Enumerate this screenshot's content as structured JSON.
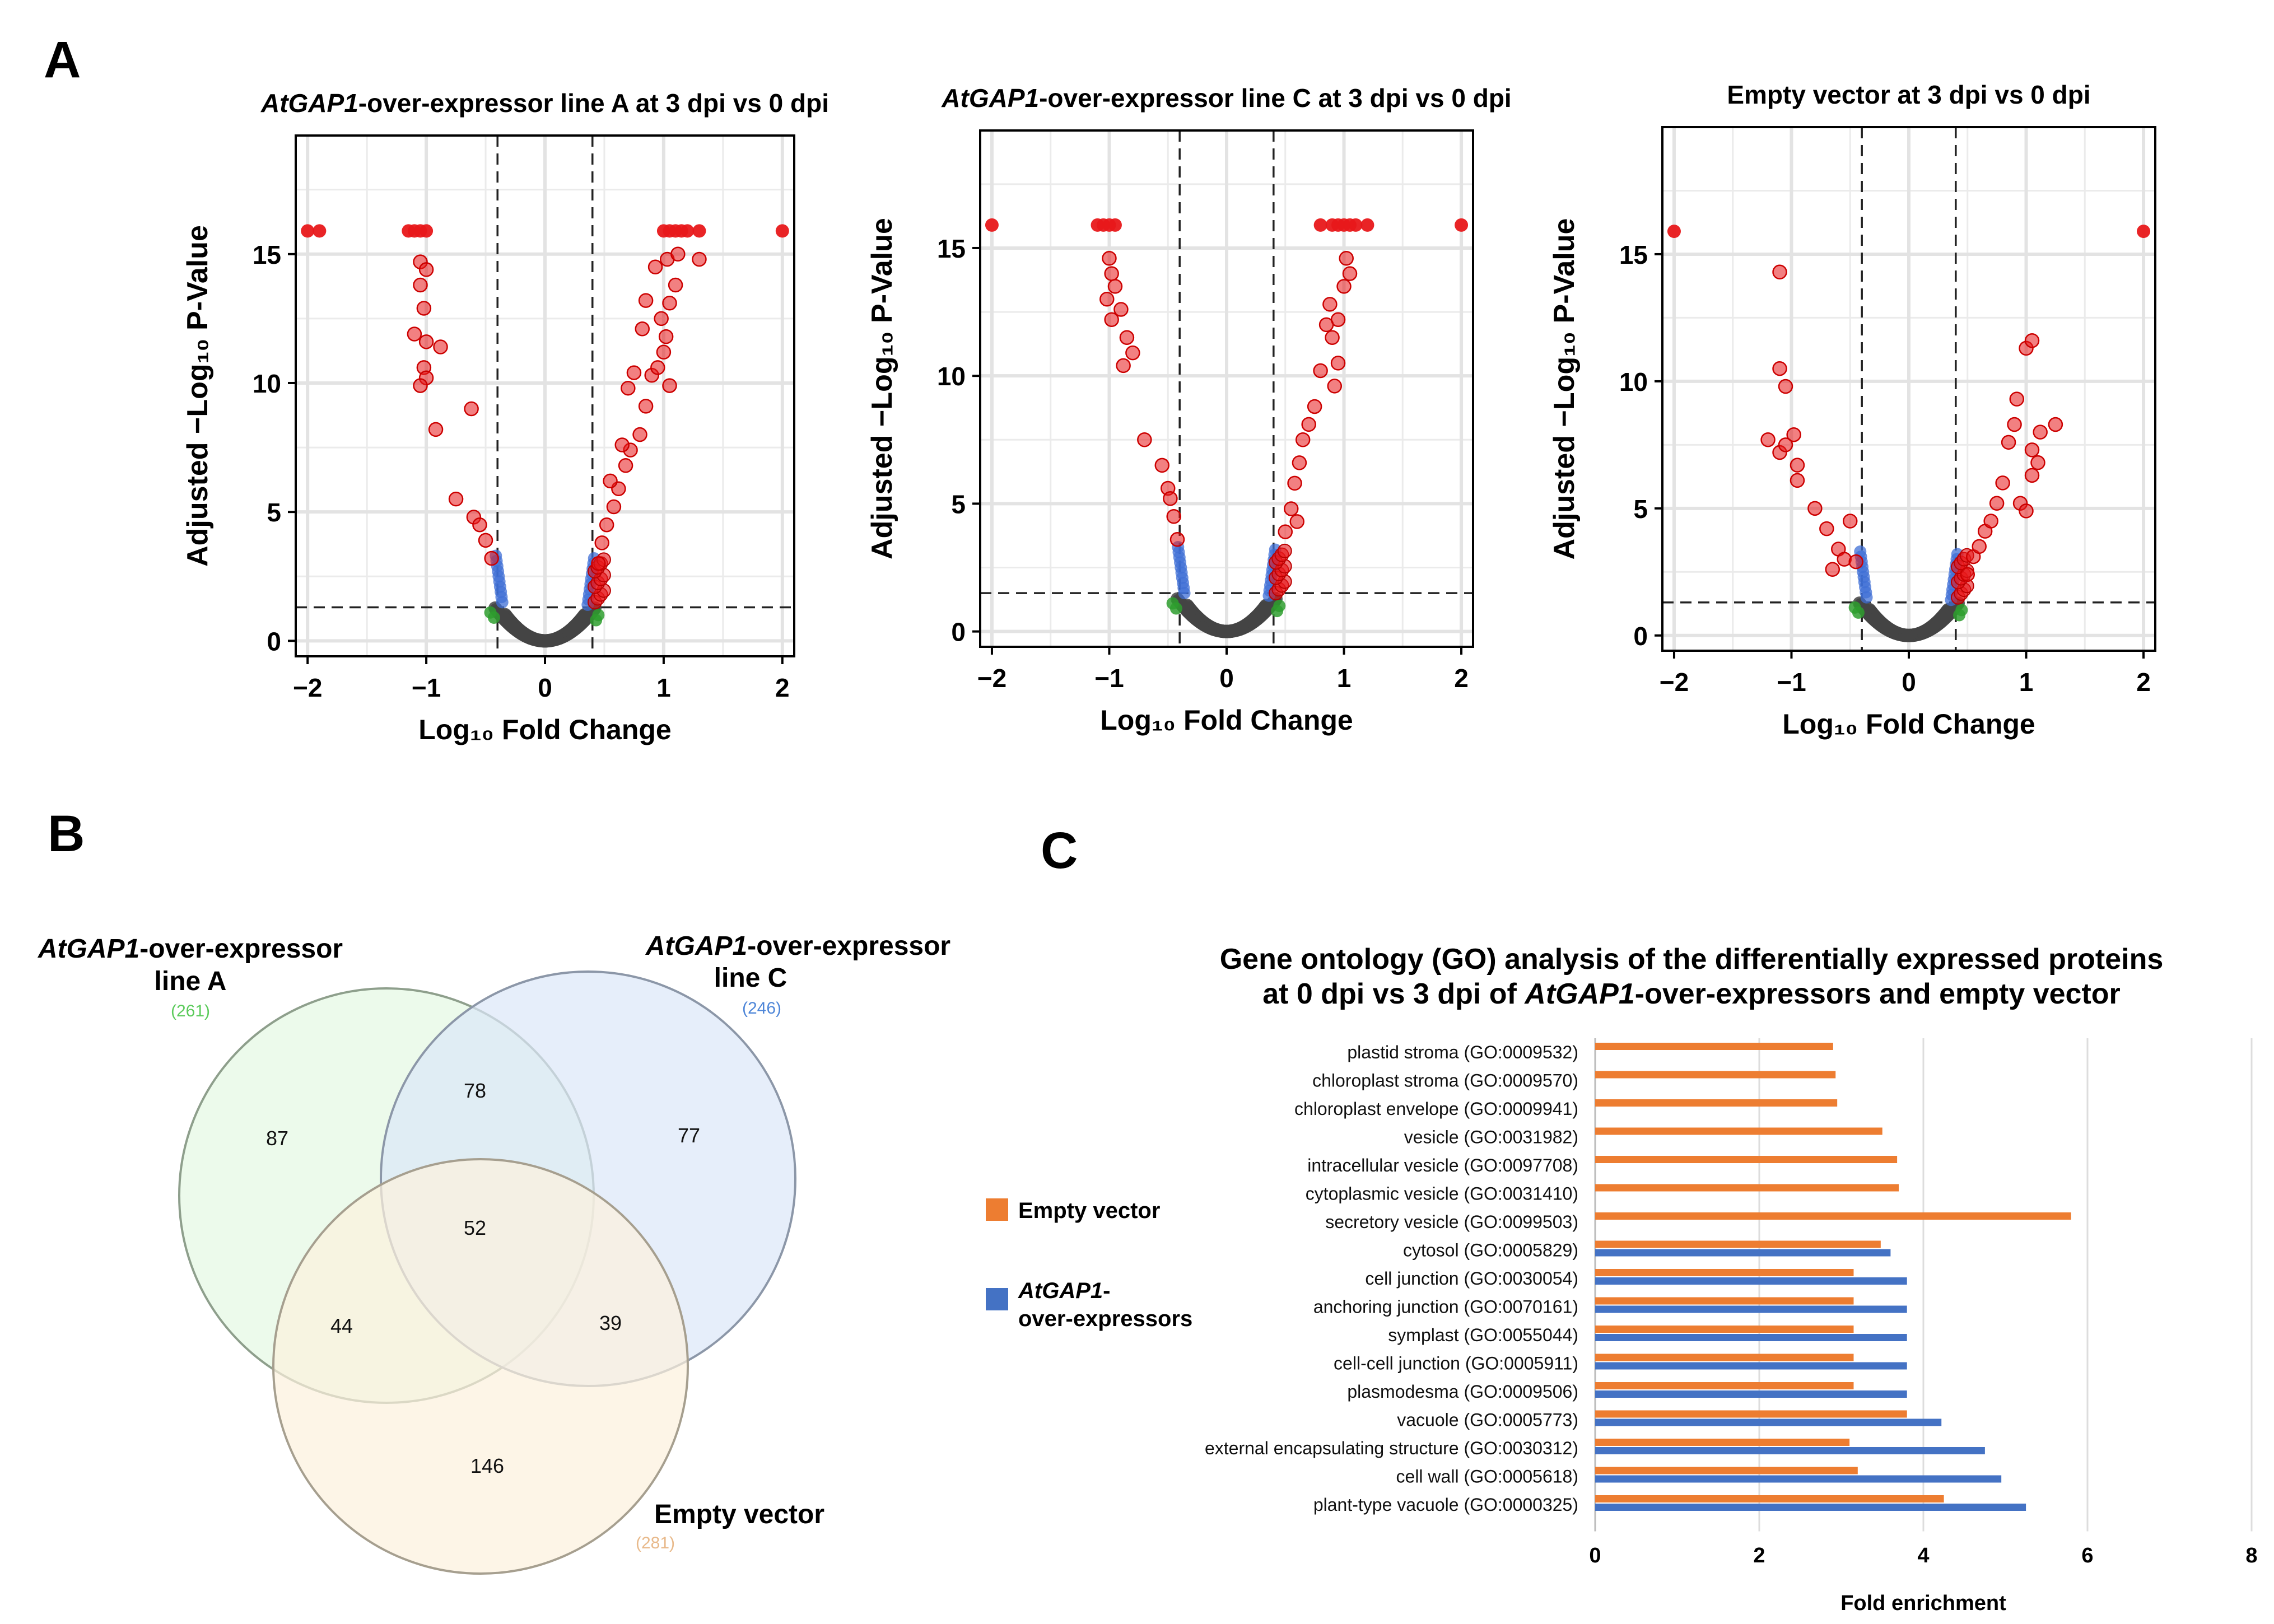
{
  "panels": {
    "a": "A",
    "b": "B",
    "c": "C"
  },
  "colors": {
    "not_significant": "#444444",
    "significant_p": "#3F6FD6",
    "significant_fc": "#2E9E2E",
    "significant_both": "#E8181A",
    "venn_line_a": "#90EE90",
    "venn_line_c": "#A8C4F0",
    "venn_empty": "#F8E6C8",
    "bar_empty_vector": "#ED7D31",
    "bar_overexpressors": "#4472C4"
  },
  "chart_data": [
    {
      "type": "scatter",
      "title_italic": "AtGAP1",
      "title_rest": "-over-expressor line A at 3 dpi vs 0 dpi",
      "xlabel": "Log₁₀ Fold Change",
      "ylabel": "Adjusted −Log₁₀ P-Value",
      "xlim": [
        -2.1,
        2.1
      ],
      "ylim": [
        -0.6,
        19.6
      ],
      "xticks": [
        -2,
        -1,
        0,
        1,
        2
      ],
      "yticks": [
        0,
        5,
        10,
        15
      ],
      "fc_cutoff": 0.4,
      "p_cutoff": 1.3,
      "outliers": [
        [
          -2.0,
          15.9
        ],
        [
          -1.9,
          15.9
        ],
        [
          -1.15,
          15.9
        ],
        [
          -1.1,
          15.9
        ],
        [
          -1.05,
          15.9
        ],
        [
          -1.0,
          15.9
        ],
        [
          1.0,
          15.9
        ],
        [
          1.05,
          15.9
        ],
        [
          1.1,
          15.9
        ],
        [
          1.15,
          15.9
        ],
        [
          1.2,
          15.9
        ],
        [
          1.3,
          15.9
        ],
        [
          2.0,
          15.9
        ]
      ],
      "points": [
        [
          -1.05,
          14.7
        ],
        [
          -1.0,
          14.4
        ],
        [
          -1.05,
          13.8
        ],
        [
          -1.02,
          12.9
        ],
        [
          -1.1,
          11.9
        ],
        [
          -1.0,
          11.6
        ],
        [
          -0.88,
          11.4
        ],
        [
          -1.02,
          10.6
        ],
        [
          -1.0,
          10.2
        ],
        [
          -1.05,
          9.9
        ],
        [
          -0.92,
          8.2
        ],
        [
          -0.62,
          9.0
        ],
        [
          -0.75,
          5.5
        ],
        [
          -0.6,
          4.8
        ],
        [
          -0.55,
          4.5
        ],
        [
          -0.5,
          3.9
        ],
        [
          -0.45,
          3.2
        ],
        [
          0.45,
          3.0
        ],
        [
          0.48,
          3.8
        ],
        [
          0.52,
          4.5
        ],
        [
          0.58,
          5.2
        ],
        [
          0.62,
          5.9
        ],
        [
          0.68,
          6.8
        ],
        [
          0.72,
          7.4
        ],
        [
          0.8,
          8.0
        ],
        [
          0.85,
          9.1
        ],
        [
          0.9,
          10.3
        ],
        [
          0.95,
          10.6
        ],
        [
          1.0,
          11.2
        ],
        [
          1.02,
          11.8
        ],
        [
          0.98,
          12.5
        ],
        [
          1.05,
          13.1
        ],
        [
          1.1,
          13.8
        ],
        [
          0.93,
          14.5
        ],
        [
          1.03,
          14.8
        ],
        [
          1.12,
          15.0
        ],
        [
          1.3,
          14.8
        ],
        [
          0.85,
          13.2
        ],
        [
          0.82,
          12.1
        ],
        [
          0.75,
          10.4
        ],
        [
          0.7,
          9.8
        ],
        [
          0.65,
          7.6
        ],
        [
          0.55,
          6.2
        ],
        [
          1.05,
          9.9
        ]
      ]
    },
    {
      "type": "scatter",
      "title_italic": "AtGAP1",
      "title_rest": "-over-expressor line C at 3 dpi vs 0 dpi",
      "xlabel": "Log₁₀ Fold Change",
      "ylabel": "Adjusted −Log₁₀ P-Value",
      "xlim": [
        -2.1,
        2.1
      ],
      "ylim": [
        -0.6,
        19.6
      ],
      "xticks": [
        -2,
        -1,
        0,
        1,
        2
      ],
      "yticks": [
        0,
        5,
        10,
        15
      ],
      "fc_cutoff": 0.4,
      "p_cutoff": 1.5,
      "outliers": [
        [
          -2.0,
          15.9
        ],
        [
          -1.1,
          15.9
        ],
        [
          -1.05,
          15.9
        ],
        [
          -1.0,
          15.9
        ],
        [
          -0.95,
          15.9
        ],
        [
          0.8,
          15.9
        ],
        [
          0.9,
          15.9
        ],
        [
          0.95,
          15.9
        ],
        [
          1.0,
          15.9
        ],
        [
          1.05,
          15.9
        ],
        [
          1.1,
          15.9
        ],
        [
          1.2,
          15.9
        ],
        [
          2.0,
          15.9
        ]
      ],
      "points": [
        [
          -1.0,
          14.6
        ],
        [
          -0.98,
          14.0
        ],
        [
          -0.95,
          13.5
        ],
        [
          -1.02,
          13.0
        ],
        [
          -0.9,
          12.6
        ],
        [
          -0.98,
          12.2
        ],
        [
          -0.85,
          11.5
        ],
        [
          -0.8,
          10.9
        ],
        [
          -0.88,
          10.4
        ],
        [
          -0.7,
          7.5
        ],
        [
          -0.55,
          6.5
        ],
        [
          -0.5,
          5.6
        ],
        [
          -0.48,
          5.2
        ],
        [
          -0.45,
          4.5
        ],
        [
          -0.42,
          3.6
        ],
        [
          0.5,
          3.9
        ],
        [
          0.55,
          4.8
        ],
        [
          0.58,
          5.8
        ],
        [
          0.62,
          6.6
        ],
        [
          0.65,
          7.5
        ],
        [
          0.7,
          8.1
        ],
        [
          0.75,
          8.8
        ],
        [
          0.8,
          10.2
        ],
        [
          0.9,
          11.5
        ],
        [
          0.95,
          12.2
        ],
        [
          1.0,
          13.5
        ],
        [
          1.02,
          14.6
        ],
        [
          1.05,
          14.0
        ],
        [
          0.88,
          12.8
        ],
        [
          0.85,
          12.0
        ],
        [
          0.95,
          10.5
        ],
        [
          0.92,
          9.6
        ],
        [
          0.6,
          4.3
        ]
      ]
    },
    {
      "type": "scatter",
      "title_italic": "",
      "title_rest": "Empty vector at 3 dpi vs 0 dpi",
      "xlabel": "Log₁₀ Fold Change",
      "ylabel": "Adjusted −Log₁₀ P-Value",
      "xlim": [
        -2.1,
        2.1
      ],
      "ylim": [
        -0.6,
        20.0
      ],
      "xticks": [
        -2,
        -1,
        0,
        1,
        2
      ],
      "yticks": [
        0,
        5,
        10,
        15
      ],
      "fc_cutoff": 0.4,
      "p_cutoff": 1.3,
      "outliers": [
        [
          -2.0,
          15.9
        ],
        [
          2.0,
          15.9
        ]
      ],
      "points": [
        [
          -1.1,
          14.3
        ],
        [
          -1.1,
          10.5
        ],
        [
          -1.05,
          9.8
        ],
        [
          -1.2,
          7.7
        ],
        [
          -1.1,
          7.2
        ],
        [
          -0.98,
          7.9
        ],
        [
          -1.05,
          7.5
        ],
        [
          -0.95,
          6.7
        ],
        [
          -0.95,
          6.1
        ],
        [
          -0.8,
          5.0
        ],
        [
          -0.7,
          4.2
        ],
        [
          -0.6,
          3.4
        ],
        [
          -0.55,
          3.0
        ],
        [
          -0.5,
          4.5
        ],
        [
          -0.45,
          2.9
        ],
        [
          -0.65,
          2.6
        ],
        [
          0.5,
          2.4
        ],
        [
          0.55,
          3.1
        ],
        [
          0.6,
          3.5
        ],
        [
          0.65,
          4.1
        ],
        [
          0.7,
          4.5
        ],
        [
          0.75,
          5.2
        ],
        [
          0.8,
          6.0
        ],
        [
          0.85,
          7.6
        ],
        [
          0.9,
          8.3
        ],
        [
          0.95,
          5.2
        ],
        [
          1.0,
          4.9
        ],
        [
          1.05,
          6.3
        ],
        [
          1.1,
          6.8
        ],
        [
          1.05,
          7.3
        ],
        [
          1.0,
          11.3
        ],
        [
          1.05,
          11.6
        ],
        [
          1.25,
          8.3
        ],
        [
          1.12,
          8.0
        ],
        [
          0.92,
          9.3
        ]
      ]
    },
    {
      "type": "venn",
      "sets": [
        {
          "name_italic": "AtGAP1",
          "name_rest": "-over-expressor",
          "name_line2": "line A",
          "total": "(261)"
        },
        {
          "name_italic": "AtGAP1",
          "name_rest": "-over-expressor",
          "name_line2": "line C",
          "total": "(246)"
        },
        {
          "name": "Empty vector",
          "total": "(281)"
        }
      ],
      "regions": {
        "a_only": "87",
        "c_only": "77",
        "empty_only": "146",
        "a_c": "78",
        "a_empty": "44",
        "c_empty": "39",
        "all": "52"
      }
    },
    {
      "type": "bar",
      "orientation": "horizontal",
      "title_line1": "Gene ontology (GO) analysis of the differentially expressed proteins",
      "title_line2_pre": "at 0 dpi vs 3 dpi of ",
      "title_line2_italic": "AtGAP1",
      "title_line2_post": "-over-expressors and empty vector",
      "xlabel": "Fold enrichment",
      "xlim": [
        0,
        8
      ],
      "xticks": [
        0,
        2,
        4,
        6,
        8
      ],
      "categories": [
        "plastid stroma (GO:0009532)",
        "chloroplast stroma (GO:0009570)",
        "chloroplast envelope (GO:0009941)",
        "vesicle (GO:0031982)",
        "intracellular vesicle (GO:0097708)",
        "cytoplasmic vesicle (GO:0031410)",
        "secretory vesicle (GO:0099503)",
        "cytosol (GO:0005829)",
        "cell junction (GO:0030054)",
        "anchoring junction (GO:0070161)",
        "symplast (GO:0055044)",
        "cell-cell junction (GO:0005911)",
        "plasmodesma (GO:0009506)",
        "vacuole (GO:0005773)",
        "external encapsulating structure (GO:0030312)",
        "cell wall (GO:0005618)",
        "plant-type vacuole (GO:0000325)"
      ],
      "series": [
        {
          "name": "Empty vector",
          "values": [
            2.9,
            2.93,
            2.95,
            3.5,
            3.68,
            3.7,
            5.8,
            3.48,
            3.15,
            3.15,
            3.15,
            3.15,
            3.15,
            3.8,
            3.1,
            3.2,
            4.25
          ]
        },
        {
          "name_italic": "AtGAP1",
          "name_rest": "-",
          "name_line2": "over-expressors",
          "values": [
            null,
            null,
            null,
            null,
            null,
            null,
            null,
            3.6,
            3.8,
            3.8,
            3.8,
            3.8,
            3.8,
            4.22,
            4.75,
            4.95,
            5.25
          ]
        }
      ]
    }
  ]
}
